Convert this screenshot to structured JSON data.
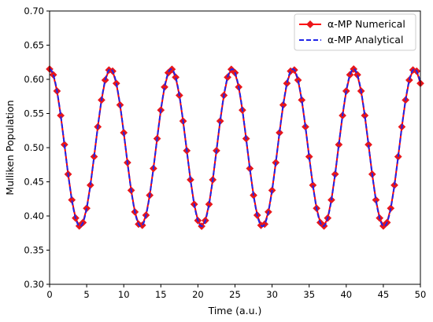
{
  "chart_data": {
    "type": "line",
    "xlabel": "Time (a.u.)",
    "ylabel": "Mulliken Population",
    "xlim": [
      0,
      50
    ],
    "ylim": [
      0.3,
      0.7
    ],
    "x_ticks": [
      "0",
      "5",
      "10",
      "15",
      "20",
      "25",
      "30",
      "35",
      "40",
      "45",
      "50"
    ],
    "y_ticks": [
      "0.30",
      "0.35",
      "0.40",
      "0.45",
      "0.50",
      "0.55",
      "0.60",
      "0.65",
      "0.70"
    ],
    "legend": {
      "placement": "top-right"
    },
    "model": {
      "form": "mean + amplitude*cos(2*pi*t/period)",
      "mean": 0.5,
      "amplitude": 0.115,
      "period": 8.2
    },
    "series": [
      {
        "name": "α-MP Numerical",
        "style": "red line with diamond markers",
        "color": "#ff0000",
        "marker_color": "#e8161b",
        "x_start": 0.0,
        "x_step": 0.5,
        "x_end": 50.0
      },
      {
        "name": "α-MP Analytical",
        "style": "dashed",
        "color": "#1f24e8",
        "x_start": 0.0,
        "x_step": 0.1,
        "x_end": 50.0
      }
    ]
  }
}
